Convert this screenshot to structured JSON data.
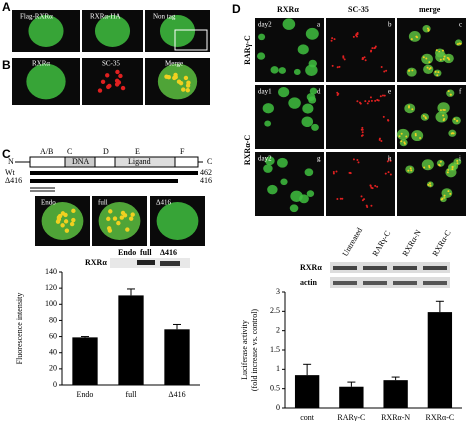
{
  "panel_A": {
    "label": "A",
    "captions": [
      "Flag-RXRα",
      "RXRα-HA",
      "Non tag"
    ]
  },
  "panel_B": {
    "label": "B",
    "captions": [
      "RXRα",
      "SC-35",
      "Merge"
    ]
  },
  "panel_C": {
    "label": "C",
    "domain_map": {
      "n_end": "N",
      "c_end": "C",
      "domains": [
        "A/B",
        "C",
        "DNA",
        "D",
        "E",
        "Ligand",
        "F"
      ]
    },
    "constructs": [
      {
        "name": "Wt",
        "length": "462"
      },
      {
        "name": "Δ416",
        "length": "416"
      }
    ],
    "captions": [
      "Endo",
      "full",
      "Δ416"
    ],
    "blot_lanes": [
      "Endo",
      "full",
      "Δ416"
    ],
    "blot_label": "RXRα"
  },
  "panel_D": {
    "label": "D",
    "columns": [
      "RXRα",
      "SC-35",
      "merge"
    ],
    "rows": [
      "RARγ-C",
      "RXRα-C"
    ],
    "tiles": [
      [
        "day2",
        "a",
        "b",
        "c"
      ],
      [
        "day1",
        "d",
        "e",
        "f"
      ],
      [
        "day2",
        "g",
        "h",
        "i"
      ]
    ],
    "blot_lanes": [
      "Untreated",
      "RARγ-C",
      "RXRα-N",
      "RXRα-C"
    ],
    "blot_rows": [
      "RXRα",
      "actin"
    ]
  },
  "chart_data": [
    {
      "type": "bar",
      "y_label": "Fluorescence intensity",
      "categories": [
        "Endo",
        "full",
        "Δ416"
      ],
      "values": [
        59,
        111,
        69
      ],
      "errors": [
        1,
        8,
        6
      ],
      "color": "#000000",
      "ylim": [
        0,
        140
      ],
      "yticks": [
        0,
        20,
        40,
        60,
        80,
        100,
        120,
        140
      ]
    },
    {
      "type": "bar",
      "y_label": "Luciferase activity (fold increase vs. control)",
      "categories": [
        "cont",
        "RARγ-C",
        "RXRα-N",
        "RXRα-C"
      ],
      "values": [
        0.85,
        0.55,
        0.72,
        2.48
      ],
      "errors": [
        0.28,
        0.12,
        0.08,
        0.28
      ],
      "color": "#000000",
      "ylim": [
        0,
        3
      ],
      "yticks": [
        0,
        0.5,
        1,
        1.5,
        2,
        2.5,
        3
      ]
    }
  ]
}
